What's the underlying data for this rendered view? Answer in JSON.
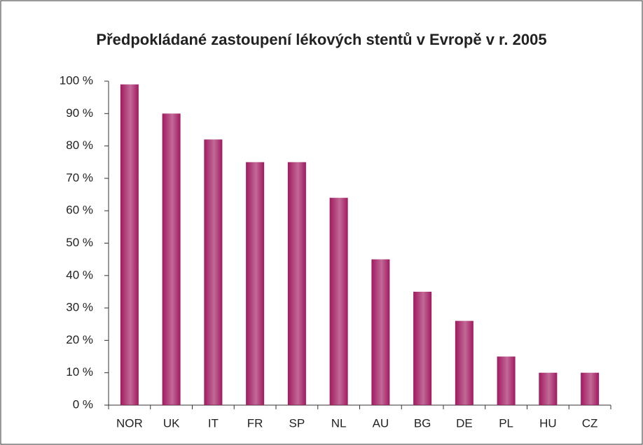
{
  "chart_data": {
    "type": "bar",
    "title": "Předpokládané zastoupení lékových stentů v Evropě v r. 2005",
    "categories": [
      "NOR",
      "UK",
      "IT",
      "FR",
      "SP",
      "NL",
      "AU",
      "BG",
      "DE",
      "PL",
      "HU",
      "CZ"
    ],
    "values": [
      99,
      90,
      82,
      75,
      75,
      64,
      45,
      35,
      26,
      15,
      10,
      10
    ],
    "color": "#a0195f",
    "ylim": [
      0,
      100
    ],
    "yticks": [
      {
        "value": 0,
        "label": "0 %"
      },
      {
        "value": 10,
        "label": "10 %"
      },
      {
        "value": 20,
        "label": "20 %"
      },
      {
        "value": 30,
        "label": "30 %"
      },
      {
        "value": 40,
        "label": "40 %"
      },
      {
        "value": 50,
        "label": "50 %"
      },
      {
        "value": 60,
        "label": "60 %"
      },
      {
        "value": 70,
        "label": "70 %"
      },
      {
        "value": 80,
        "label": "80 %"
      },
      {
        "value": 90,
        "label": "90 %"
      },
      {
        "value": 100,
        "label": "100 %"
      }
    ],
    "grid": false
  }
}
